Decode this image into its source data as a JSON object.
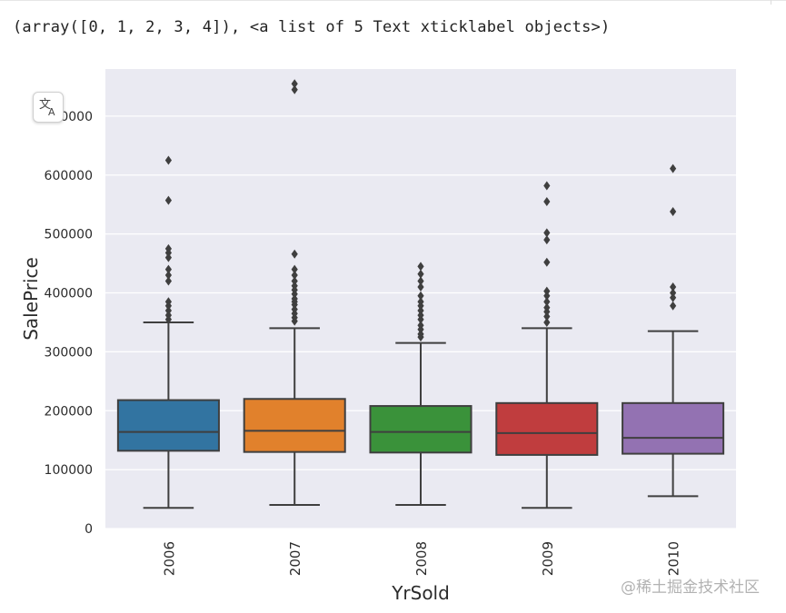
{
  "output_text": "(array([0, 1, 2, 3, 4]), <a list of 5 Text xticklabel objects>)",
  "watermark": "@稀土掘金技术社区",
  "chart_data": {
    "type": "boxplot",
    "title": "",
    "xlabel": "YrSold",
    "ylabel": "SalePrice",
    "categories": [
      "2006",
      "2007",
      "2008",
      "2009",
      "2010"
    ],
    "ylim": [
      0,
      780000
    ],
    "yticks": [
      0,
      100000,
      200000,
      300000,
      400000,
      500000,
      600000,
      700000
    ],
    "ytick_labels": [
      "0",
      "100000",
      "200000",
      "300000",
      "400000",
      "500000",
      "600000",
      "700000"
    ],
    "grid": true,
    "background": "#eaeaf2",
    "colors": [
      "#3274a1",
      "#e1812c",
      "#3a923a",
      "#c03d3e",
      "#9372b2"
    ],
    "boxes": [
      {
        "category": "2006",
        "whisker_low": 35000,
        "q1": 132000,
        "median": 164000,
        "q3": 218000,
        "whisker_high": 350000,
        "outliers": [
          355000,
          362000,
          370000,
          378000,
          385000,
          420000,
          430000,
          440000,
          460000,
          468000,
          475000,
          557000,
          625000
        ]
      },
      {
        "category": "2007",
        "whisker_low": 40000,
        "q1": 130000,
        "median": 166000,
        "q3": 220000,
        "whisker_high": 340000,
        "outliers": [
          352000,
          358000,
          365000,
          372000,
          380000,
          385000,
          390000,
          398000,
          405000,
          412000,
          420000,
          430000,
          440000,
          466000,
          745000,
          755000
        ]
      },
      {
        "category": "2008",
        "whisker_low": 40000,
        "q1": 129000,
        "median": 164000,
        "q3": 208000,
        "whisker_high": 315000,
        "outliers": [
          325000,
          330000,
          338000,
          345000,
          355000,
          362000,
          370000,
          378000,
          385000,
          395000,
          410000,
          420000,
          432000,
          445000
        ]
      },
      {
        "category": "2009",
        "whisker_low": 35000,
        "q1": 125000,
        "median": 162000,
        "q3": 213000,
        "whisker_high": 340000,
        "outliers": [
          350000,
          360000,
          368000,
          375000,
          385000,
          395000,
          403000,
          452000,
          490000,
          502000,
          555000,
          582000
        ]
      },
      {
        "category": "2010",
        "whisker_low": 55000,
        "q1": 127000,
        "median": 154000,
        "q3": 213000,
        "whisker_high": 335000,
        "outliers": [
          378000,
          392000,
          400000,
          410000,
          538000,
          611000
        ]
      }
    ]
  }
}
